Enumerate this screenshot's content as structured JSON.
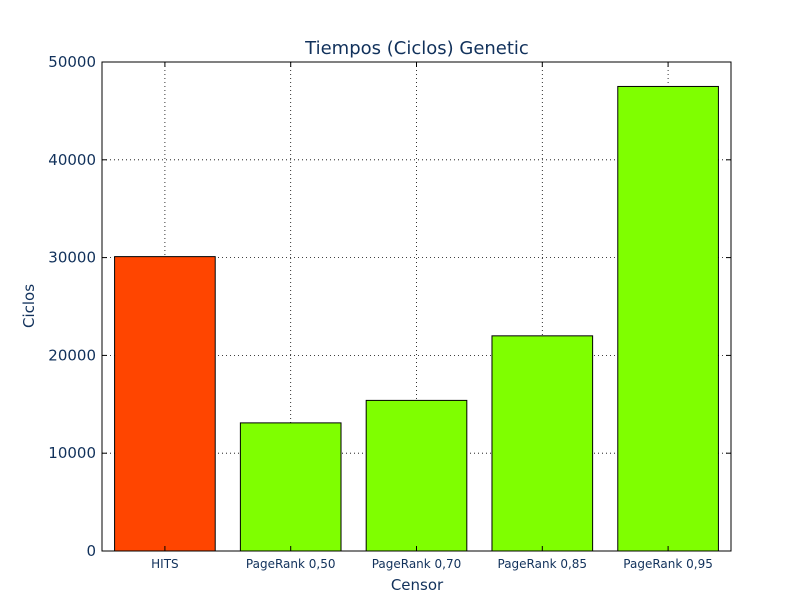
{
  "chart_data": {
    "type": "bar",
    "title": "Tiempos (Ciclos) Genetic",
    "xlabel": "Censor",
    "ylabel": "Ciclos",
    "categories": [
      "HITS",
      "PageRank 0,50",
      "PageRank 0,70",
      "PageRank 0,85",
      "PageRank 0,95"
    ],
    "values": [
      30100,
      13100,
      15400,
      22000,
      47500
    ],
    "colors": [
      "#ff4500",
      "#7fff00",
      "#7fff00",
      "#7fff00",
      "#7fff00"
    ],
    "ylim": [
      0,
      50000
    ],
    "yticks": [
      "0",
      "10000",
      "20000",
      "30000",
      "40000",
      "50000"
    ],
    "grid": true
  }
}
